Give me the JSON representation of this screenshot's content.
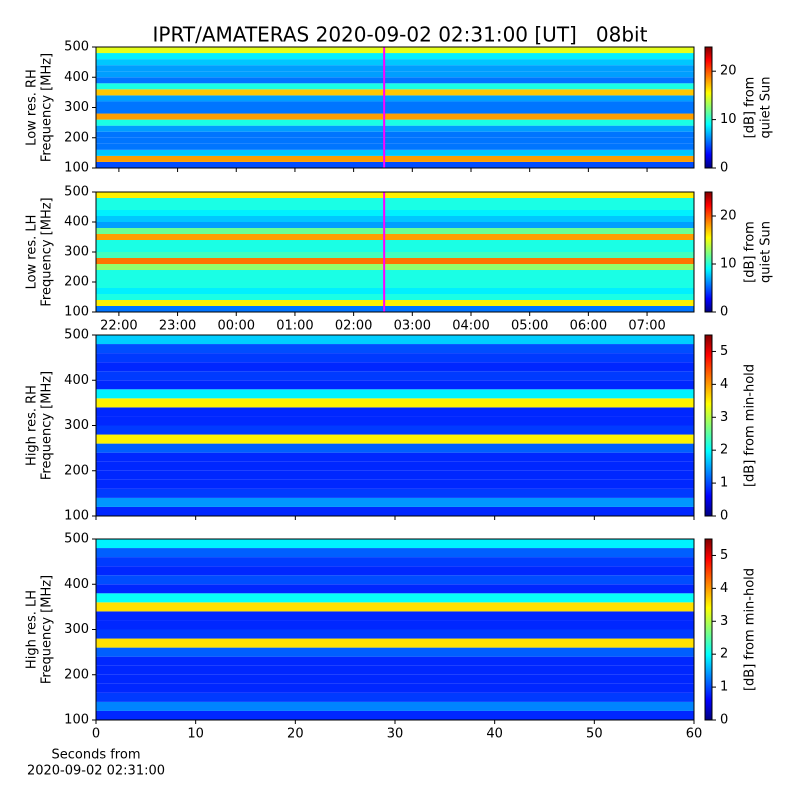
{
  "chart_data": [
    {
      "type": "heatmap",
      "title": "IPRT/AMATERAS 2020-09-02 02:31:00 [UT]   08bit",
      "ylabel": [
        "Low res. RH",
        "Frequency [MHz]"
      ],
      "colormap": "jet",
      "y_edges": [
        100,
        120,
        140,
        160,
        180,
        200,
        220,
        240,
        260,
        280,
        300,
        320,
        340,
        360,
        380,
        400,
        420,
        440,
        460,
        480,
        500
      ],
      "values": [
        5,
        18,
        8,
        6,
        6,
        6,
        7,
        10,
        18,
        6,
        6,
        7,
        17,
        10,
        6,
        7,
        7,
        8,
        9,
        15
      ],
      "ylim": [
        100,
        500
      ],
      "yticks": [
        100,
        200,
        300,
        400,
        500
      ],
      "clim": [
        0,
        25
      ],
      "cticks": [
        0,
        10,
        20
      ],
      "colorbar_label": [
        "[dB] from",
        "quiet Sun"
      ],
      "marker_x": 26.52,
      "marker_color": "#ff00ff"
    },
    {
      "type": "heatmap",
      "ylabel": [
        "Low res. LH",
        "Frequency [MHz]"
      ],
      "colormap": "jet",
      "y_edges": [
        100,
        120,
        140,
        160,
        180,
        200,
        220,
        240,
        260,
        280,
        300,
        320,
        340,
        360,
        380,
        400,
        420,
        440,
        460,
        480,
        500
      ],
      "values": [
        6,
        16,
        10,
        9,
        10,
        10,
        10,
        13,
        19,
        11,
        10,
        10,
        18,
        12,
        7,
        8,
        9,
        10,
        10,
        16
      ],
      "xlim": [
        21.61,
        31.8
      ],
      "xticks": [
        {
          "value": 22,
          "label": "22:00"
        },
        {
          "value": 23,
          "label": "23:00"
        },
        {
          "value": 24,
          "label": "00:00"
        },
        {
          "value": 25,
          "label": "01:00"
        },
        {
          "value": 26,
          "label": "02:00"
        },
        {
          "value": 27,
          "label": "03:00"
        },
        {
          "value": 28,
          "label": "04:00"
        },
        {
          "value": 29,
          "label": "05:00"
        },
        {
          "value": 30,
          "label": "06:00"
        },
        {
          "value": 31,
          "label": "07:00"
        }
      ],
      "ylim": [
        100,
        500
      ],
      "yticks": [
        100,
        200,
        300,
        400,
        500
      ],
      "clim": [
        0,
        25
      ],
      "cticks": [
        0,
        10,
        20
      ],
      "colorbar_label": [
        "[dB] from",
        "quiet Sun"
      ],
      "marker_x": 26.52,
      "marker_color": "#ff00ff"
    },
    {
      "type": "heatmap",
      "ylabel": [
        "High res. RH",
        "Frequency [MHz]"
      ],
      "colormap": "jet",
      "y_edges": [
        100,
        120,
        140,
        160,
        180,
        200,
        220,
        240,
        260,
        280,
        300,
        320,
        340,
        360,
        380,
        400,
        420,
        440,
        460,
        480,
        500
      ],
      "values": [
        0.9,
        1.5,
        1.0,
        0.9,
        0.9,
        0.9,
        0.9,
        1.2,
        3.5,
        1.0,
        0.9,
        0.9,
        3.5,
        2.0,
        0.9,
        1.0,
        0.9,
        1.0,
        1.1,
        1.8
      ],
      "ylim": [
        100,
        500
      ],
      "yticks": [
        100,
        200,
        300,
        400,
        500
      ],
      "clim": [
        0,
        5.5
      ],
      "cticks": [
        0,
        1,
        2,
        3,
        4,
        5
      ],
      "colorbar_label": [
        "[dB] from min-hold"
      ]
    },
    {
      "type": "heatmap",
      "ylabel": [
        "High res. LH",
        "Frequency [MHz]"
      ],
      "colormap": "jet",
      "y_edges": [
        100,
        120,
        140,
        160,
        180,
        200,
        220,
        240,
        260,
        280,
        300,
        320,
        340,
        360,
        380,
        400,
        420,
        440,
        460,
        480,
        500
      ],
      "values": [
        0.9,
        1.4,
        1.0,
        0.9,
        0.9,
        0.9,
        0.9,
        1.2,
        3.6,
        1.0,
        0.9,
        0.9,
        3.6,
        2.1,
        0.9,
        1.1,
        0.9,
        1.0,
        1.2,
        2.0
      ],
      "xlim": [
        0,
        60
      ],
      "xticks": [
        0,
        10,
        20,
        30,
        40,
        50,
        60
      ],
      "xlabel": [
        "Seconds from",
        "2020-09-02 02:31:00"
      ],
      "ylim": [
        100,
        500
      ],
      "yticks": [
        100,
        200,
        300,
        400,
        500
      ],
      "clim": [
        0,
        5.5
      ],
      "cticks": [
        0,
        1,
        2,
        3,
        4,
        5
      ],
      "colorbar_label": [
        "[dB] from min-hold"
      ]
    }
  ]
}
